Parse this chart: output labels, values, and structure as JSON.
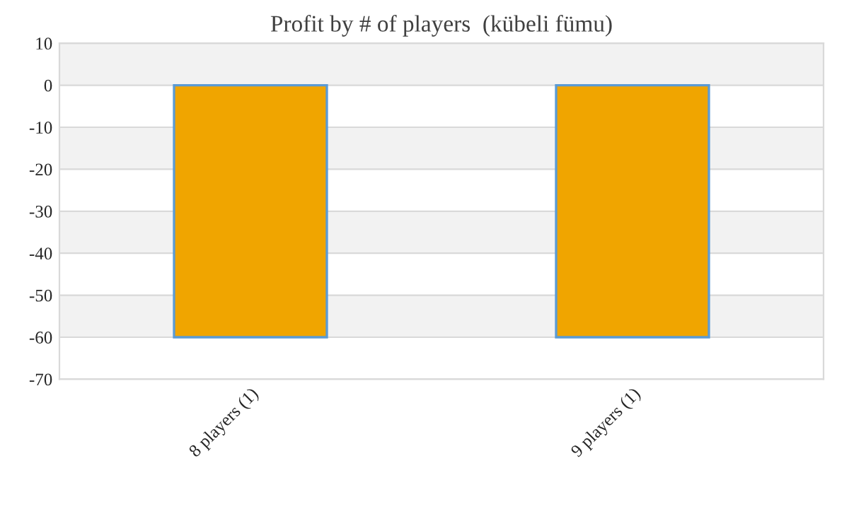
{
  "chart_data": {
    "type": "bar",
    "title": "Profit by # of players  (kübeli fümu)",
    "categories": [
      "8 players (1)",
      "9 players (1)"
    ],
    "values": [
      -60,
      -60
    ],
    "color": "#f0a500",
    "ylim": [
      -70,
      10
    ],
    "yticks": [
      -70,
      -60,
      -50,
      -40,
      -30,
      -20,
      -10,
      0,
      10
    ],
    "grid": "y",
    "bands": [
      {
        "axis": "y",
        "from": 0,
        "to": 10,
        "color": "#f2f2f2"
      },
      {
        "axis": "y",
        "from": -20,
        "to": -10,
        "color": "#f2f2f2"
      },
      {
        "axis": "y",
        "from": -40,
        "to": -30,
        "color": "#f2f2f2"
      },
      {
        "axis": "y",
        "from": -60,
        "to": -50,
        "color": "#f2f2f2"
      }
    ]
  }
}
